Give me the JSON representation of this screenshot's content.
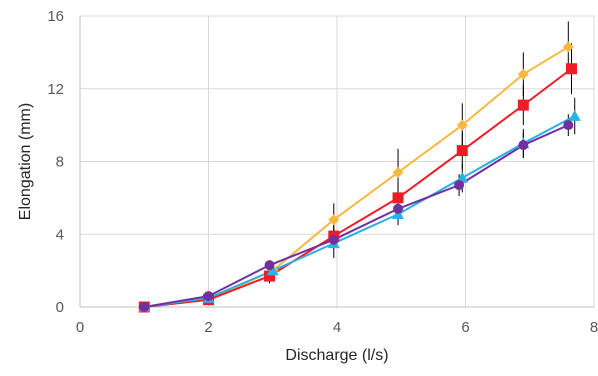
{
  "chart_data": {
    "type": "line",
    "title": "",
    "xlabel": "Discharge (l/s)",
    "ylabel": "Elongation (mm)",
    "xlim": [
      0,
      8
    ],
    "ylim": [
      0,
      16
    ],
    "x_ticks": [
      "0",
      "2",
      "4",
      "6",
      "8"
    ],
    "y_ticks": [
      "0",
      "4",
      "8",
      "12",
      "16"
    ],
    "grid": "vertical and horizontal major gridlines",
    "legend": "none",
    "error_bars": "vertical, black",
    "series": [
      {
        "color": "#F5B942",
        "marker": "diamond",
        "x": [
          1.0,
          2.0,
          3.0,
          3.95,
          4.95,
          5.95,
          6.9,
          7.6
        ],
        "y": [
          0.0,
          0.4,
          2.0,
          4.8,
          7.4,
          10.0,
          12.8,
          14.3
        ],
        "err": [
          0,
          0,
          0,
          0.9,
          1.3,
          1.2,
          1.2,
          1.4
        ]
      },
      {
        "color": "#EE1C25",
        "marker": "square",
        "x": [
          1.0,
          2.0,
          2.95,
          3.95,
          4.95,
          5.95,
          6.9,
          7.65
        ],
        "y": [
          0.0,
          0.4,
          1.7,
          3.9,
          6.0,
          8.6,
          11.1,
          13.1
        ],
        "err": [
          0,
          0,
          0.4,
          0.7,
          0.8,
          1.0,
          1.1,
          1.4
        ]
      },
      {
        "color": "#2BB0E8",
        "marker": "triangle",
        "x": [
          1.0,
          2.0,
          3.0,
          3.95,
          4.95,
          5.95,
          6.9,
          7.7
        ],
        "y": [
          0.0,
          0.5,
          2.0,
          3.5,
          5.1,
          7.1,
          9.0,
          10.5
        ],
        "err": [
          0,
          0,
          0,
          0.8,
          0.6,
          0.8,
          0.8,
          1.0
        ]
      },
      {
        "color": "#7030A0",
        "marker": "circle",
        "x": [
          1.0,
          2.0,
          2.95,
          3.95,
          4.95,
          5.9,
          6.9,
          7.6
        ],
        "y": [
          0.0,
          0.6,
          2.3,
          3.7,
          5.4,
          6.7,
          8.9,
          10.0
        ],
        "err": [
          0,
          0,
          0,
          0.4,
          0.5,
          0.6,
          0.7,
          0.6
        ]
      }
    ]
  }
}
